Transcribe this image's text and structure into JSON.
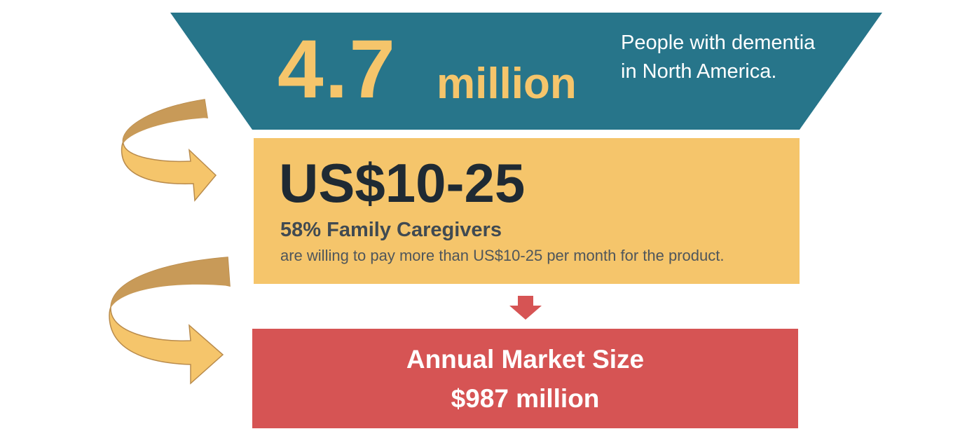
{
  "colors": {
    "top_band": "#27758a",
    "middle_band": "#f5c56b",
    "bottom_band": "#d65454",
    "arrow_fill": "#f5c56b",
    "arrow_shade": "#c89a58",
    "down_arrow": "#d65454",
    "highlight_text": "#f5c56b",
    "dark_text": "#1f2a33"
  },
  "top": {
    "number": "4.7",
    "unit": "million",
    "description": "People with dementia in North America."
  },
  "middle": {
    "price": "US$10-25",
    "caregivers": "58% Family Caregivers",
    "willing_text": "are willing to pay more than US$10-25 per month for the product."
  },
  "bottom": {
    "title": "Annual Market Size",
    "value": "$987 million"
  },
  "icons": [
    "curved-arrow-icon",
    "curved-arrow-icon",
    "down-arrow-icon"
  ]
}
